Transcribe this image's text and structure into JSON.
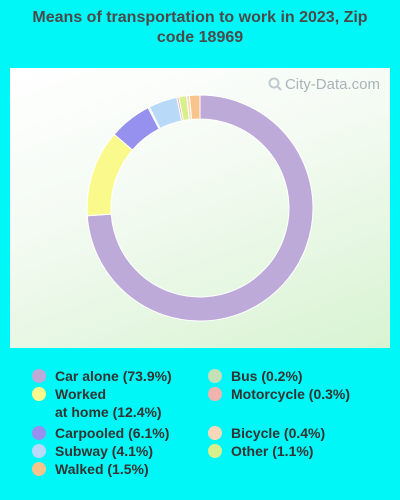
{
  "title": "Means of transportation to work in 2023, Zip code 18969",
  "watermark": "City-Data.com",
  "colors": {
    "background": "#00f7f7"
  },
  "chart_data": {
    "type": "pie",
    "donut": true,
    "title": "Means of transportation to work in 2023, Zip code 18969",
    "series": [
      {
        "name": "Car alone",
        "label": "Car alone (73.9%)",
        "value": 73.9,
        "color": "#bdaad9"
      },
      {
        "name": "Worked at home",
        "label": "Worked\nat home (12.4%)",
        "value": 12.4,
        "color": "#fafa8c"
      },
      {
        "name": "Carpooled",
        "label": "Carpooled (6.1%)",
        "value": 6.1,
        "color": "#9690ee"
      },
      {
        "name": "Subway",
        "label": "Subway (4.1%)",
        "value": 4.1,
        "color": "#b8daf8"
      },
      {
        "name": "Walked",
        "label": "Walked (1.5%)",
        "value": 1.5,
        "color": "#f7c58c"
      },
      {
        "name": "Bus",
        "label": "Bus (0.2%)",
        "value": 0.2,
        "color": "#c4e0b7"
      },
      {
        "name": "Motorcycle",
        "label": "Motorcycle (0.3%)",
        "value": 0.3,
        "color": "#f0b3ae"
      },
      {
        "name": "Bicycle",
        "label": "Bicycle (0.4%)",
        "value": 0.4,
        "color": "#f8d8b8"
      },
      {
        "name": "Other",
        "label": "Other (1.1%)",
        "value": 1.1,
        "color": "#d8f08c"
      }
    ],
    "slice_order": [
      "Car alone",
      "Worked at home",
      "Carpooled",
      "Bus",
      "Subway",
      "Motorcycle",
      "Other",
      "Bicycle",
      "Walked"
    ]
  }
}
